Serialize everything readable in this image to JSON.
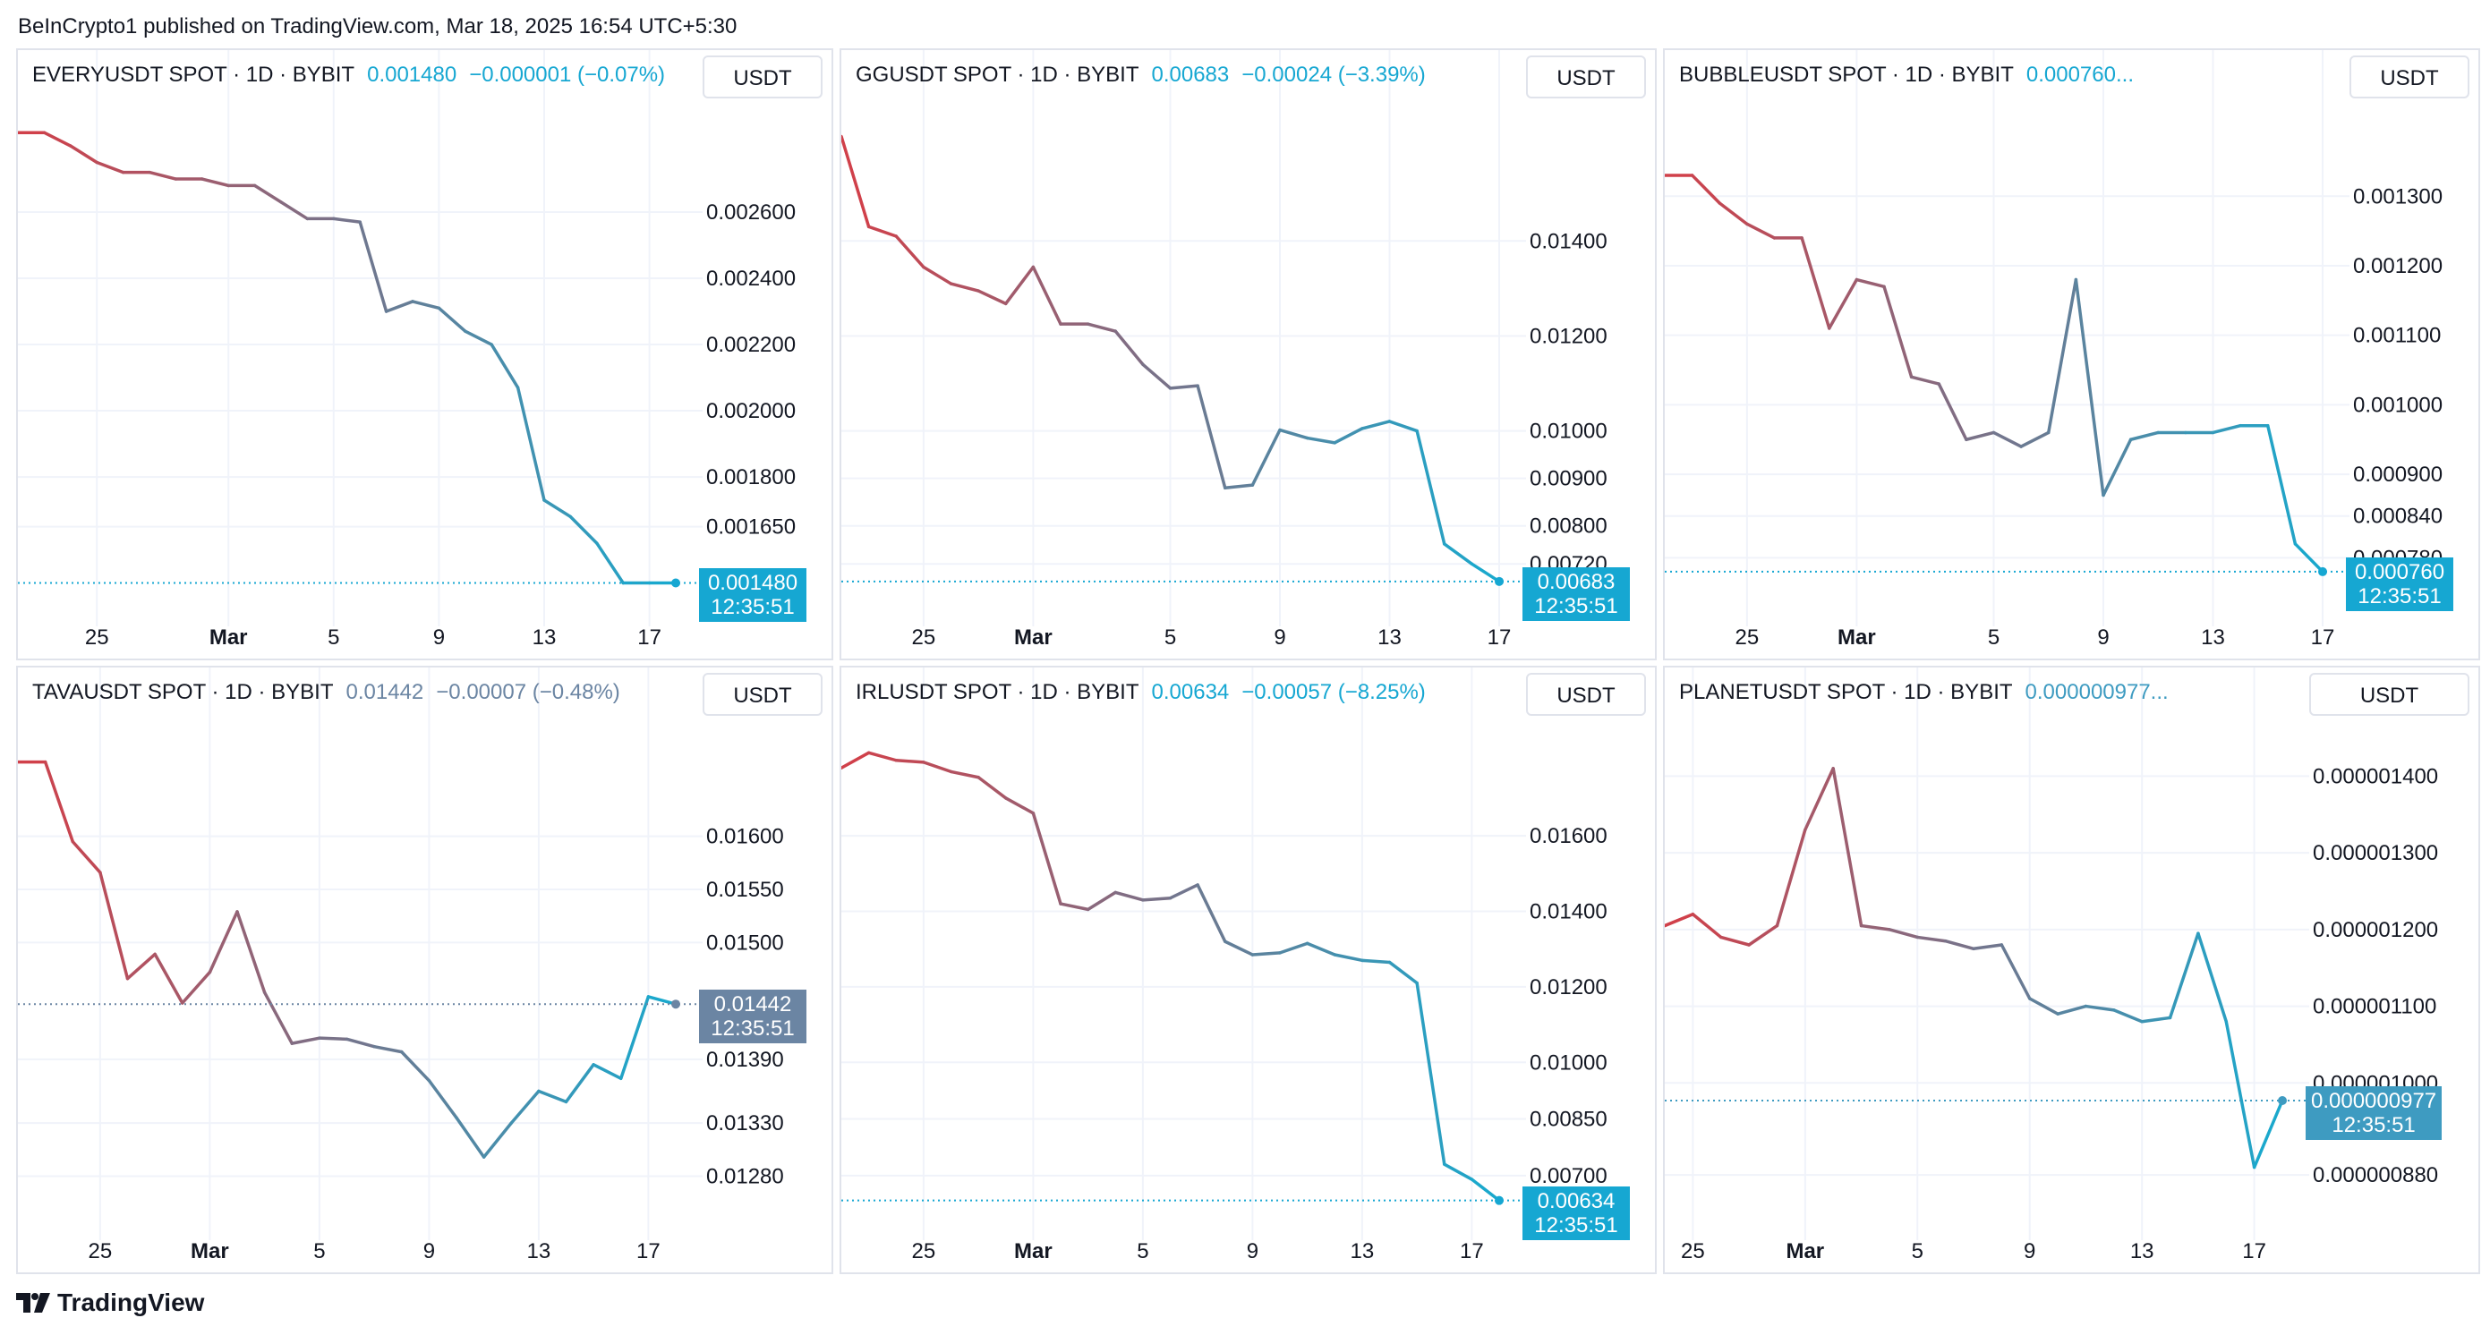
{
  "published": "BeInCrypto1 published on TradingView.com, Mar 18, 2025 16:54 UTC+5:30",
  "brand": "TradingView",
  "colors": {
    "up_color": "#d0404a",
    "down_color": "#1ba8cc",
    "gray_tag": "#6b85a3",
    "grid": "#f0f3fa"
  },
  "chart_data": [
    {
      "type": "line",
      "title": "EVERYUSDT SPOT · 1D · BYBIT",
      "price": "0.001480",
      "change": "−0.000001 (−0.07%)",
      "unit": "USDT",
      "last_label": "0.001480",
      "countdown": "12:35:51",
      "tag_color": "#16a7d2",
      "x_ticks": [
        {
          "day": 3,
          "label": "25"
        },
        {
          "day": 8,
          "label": "Mar"
        },
        {
          "day": 12,
          "label": "5"
        },
        {
          "day": 16,
          "label": "9"
        },
        {
          "day": 20,
          "label": "13"
        },
        {
          "day": 24,
          "label": "17"
        }
      ],
      "y_ticks": [
        "0.002600",
        "0.002400",
        "0.002200",
        "0.002000",
        "0.001800",
        "0.001650"
      ],
      "y_tick_values": [
        0.0026,
        0.0024,
        0.0022,
        0.002,
        0.0018,
        0.00165
      ],
      "ylim": [
        0.00143,
        0.0029
      ],
      "values": [
        0.00284,
        0.00284,
        0.0028,
        0.00275,
        0.00272,
        0.00272,
        0.0027,
        0.0027,
        0.00268,
        0.00268,
        0.00263,
        0.00258,
        0.00258,
        0.00257,
        0.0023,
        0.00233,
        0.00231,
        0.00224,
        0.0022,
        0.00207,
        0.00173,
        0.00168,
        0.0016,
        0.00148,
        0.00148,
        0.00148
      ]
    },
    {
      "type": "line",
      "title": "GGUSDT SPOT · 1D · BYBIT",
      "price": "0.00683",
      "change": "−0.00024 (−3.39%)",
      "unit": "USDT",
      "last_label": "0.00683",
      "countdown": "12:35:51",
      "tag_color": "#16a7d2",
      "x_ticks": [
        {
          "day": 3,
          "label": "25"
        },
        {
          "day": 7,
          "label": "Mar"
        },
        {
          "day": 12,
          "label": "5"
        },
        {
          "day": 16,
          "label": "9"
        },
        {
          "day": 20,
          "label": "13"
        },
        {
          "day": 24,
          "label": "17"
        }
      ],
      "y_ticks": [
        "0.01400",
        "0.01200",
        "0.01000",
        "0.00900",
        "0.00800",
        "0.00720"
      ],
      "y_tick_values": [
        0.014,
        0.012,
        0.01,
        0.009,
        0.008,
        0.0072
      ],
      "ylim": [
        0.00645,
        0.0167
      ],
      "values": [
        0.0162,
        0.0143,
        0.0141,
        0.01345,
        0.0131,
        0.01295,
        0.01268,
        0.01345,
        0.01225,
        0.01225,
        0.0121,
        0.0114,
        0.0109,
        0.01095,
        0.0088,
        0.00886,
        0.01002,
        0.00985,
        0.00975,
        0.01005,
        0.0102,
        0.01,
        0.00762,
        0.0072,
        0.00683
      ]
    },
    {
      "type": "line",
      "title": "BUBBLEUSDT SPOT · 1D · BYBIT",
      "price": "0.000760...",
      "change": "",
      "unit": "USDT",
      "last_label": "0.000760",
      "countdown": "12:35:51",
      "tag_color": "#16a7d2",
      "x_ticks": [
        {
          "day": 3,
          "label": "25"
        },
        {
          "day": 7,
          "label": "Mar"
        },
        {
          "day": 12,
          "label": "5"
        },
        {
          "day": 16,
          "label": "9"
        },
        {
          "day": 20,
          "label": "13"
        },
        {
          "day": 24,
          "label": "17"
        }
      ],
      "y_ticks": [
        "0.001300",
        "0.001200",
        "0.001100",
        "0.001000",
        "0.000900",
        "0.000840",
        "0.000780"
      ],
      "y_tick_values": [
        0.0013,
        0.0012,
        0.0011,
        0.001,
        0.0009,
        0.00084,
        0.00078
      ],
      "ylim": [
        0.00072,
        0.00142
      ],
      "values": [
        0.00133,
        0.00133,
        0.00129,
        0.00126,
        0.00124,
        0.00124,
        0.00111,
        0.00118,
        0.00117,
        0.00104,
        0.00103,
        0.00095,
        0.00096,
        0.00094,
        0.00096,
        0.00118,
        0.00087,
        0.00095,
        0.00096,
        0.00096,
        0.00096,
        0.00097,
        0.00097,
        0.0008,
        0.00076
      ]
    },
    {
      "type": "line",
      "title": "TAVAUSDT SPOT · 1D · BYBIT",
      "price": "0.01442",
      "change": "−0.00007 (−0.48%)",
      "unit": "USDT",
      "last_label": "0.01442",
      "countdown": "12:35:51",
      "tag_color": "#6b85a3",
      "x_ticks": [
        {
          "day": 3,
          "label": "25"
        },
        {
          "day": 7,
          "label": "Mar"
        },
        {
          "day": 11,
          "label": "5"
        },
        {
          "day": 15,
          "label": "9"
        },
        {
          "day": 19,
          "label": "13"
        },
        {
          "day": 23,
          "label": "17"
        }
      ],
      "y_ticks": [
        "0.01600",
        "0.01550",
        "0.01500",
        "0.01390",
        "0.01330",
        "0.01280"
      ],
      "y_tick_values": [
        0.016,
        0.0155,
        0.015,
        0.0139,
        0.0133,
        0.0128
      ],
      "ylim": [
        0.01245,
        0.017
      ],
      "values": [
        0.0167,
        0.0167,
        0.01595,
        0.01566,
        0.01466,
        0.01489,
        0.01443,
        0.01472,
        0.01529,
        0.01453,
        0.01405,
        0.0141,
        0.01409,
        0.01402,
        0.01397,
        0.0137,
        0.01335,
        0.01298,
        0.0133,
        0.0136,
        0.0135,
        0.01385,
        0.01372,
        0.01449,
        0.01442
      ]
    },
    {
      "type": "line",
      "title": "IRLUSDT SPOT · 1D · BYBIT",
      "price": "0.00634",
      "change": "−0.00057 (−8.25%)",
      "unit": "USDT",
      "last_label": "0.00634",
      "countdown": "12:35:51",
      "tag_color": "#16a7d2",
      "x_ticks": [
        {
          "day": 3,
          "label": "25"
        },
        {
          "day": 7,
          "label": "Mar"
        },
        {
          "day": 11,
          "label": "5"
        },
        {
          "day": 15,
          "label": "9"
        },
        {
          "day": 19,
          "label": "13"
        },
        {
          "day": 23,
          "label": "17"
        }
      ],
      "y_ticks": [
        "0.01600",
        "0.01400",
        "0.01200",
        "0.01000",
        "0.00850",
        "0.00700"
      ],
      "y_tick_values": [
        0.016,
        0.014,
        0.012,
        0.01,
        0.0085,
        0.007
      ],
      "ylim": [
        0.006,
        0.0188
      ],
      "values": [
        0.0178,
        0.0182,
        0.018,
        0.01795,
        0.0177,
        0.01755,
        0.017,
        0.0166,
        0.0142,
        0.01405,
        0.0145,
        0.0143,
        0.01435,
        0.0147,
        0.0132,
        0.01285,
        0.0129,
        0.01315,
        0.01285,
        0.0127,
        0.01265,
        0.0121,
        0.0073,
        0.0069,
        0.00634
      ]
    },
    {
      "type": "line",
      "title": "PLANETUSDT SPOT · 1D · BYBIT",
      "price": "0.000000977...",
      "change": "",
      "unit": "USDT",
      "last_label": "0.000000977",
      "countdown": "12:35:51",
      "tag_color": "#3e9bc1",
      "x_ticks": [
        {
          "day": 1,
          "label": "25"
        },
        {
          "day": 5,
          "label": "Mar"
        },
        {
          "day": 9,
          "label": "5"
        },
        {
          "day": 13,
          "label": "9"
        },
        {
          "day": 17,
          "label": "13"
        },
        {
          "day": 21,
          "label": "17"
        }
      ],
      "y_ticks": [
        "0.000001400",
        "0.000001300",
        "0.000001200",
        "0.000001100",
        "0.000001000",
        "0.000000880"
      ],
      "y_tick_values": [
        1.4e-06,
        1.3e-06,
        1.2e-06,
        1.1e-06,
        1e-06,
        8.8e-07
      ],
      "ylim": [
        8.3e-07,
        1.46e-06
      ],
      "values": [
        1.205e-06,
        1.22e-06,
        1.19e-06,
        1.18e-06,
        1.205e-06,
        1.33e-06,
        1.41e-06,
        1.205e-06,
        1.2e-06,
        1.19e-06,
        1.185e-06,
        1.175e-06,
        1.18e-06,
        1.11e-06,
        1.09e-06,
        1.1e-06,
        1.095e-06,
        1.08e-06,
        1.085e-06,
        1.195e-06,
        1.08e-06,
        8.9e-07,
        9.77e-07
      ]
    }
  ]
}
